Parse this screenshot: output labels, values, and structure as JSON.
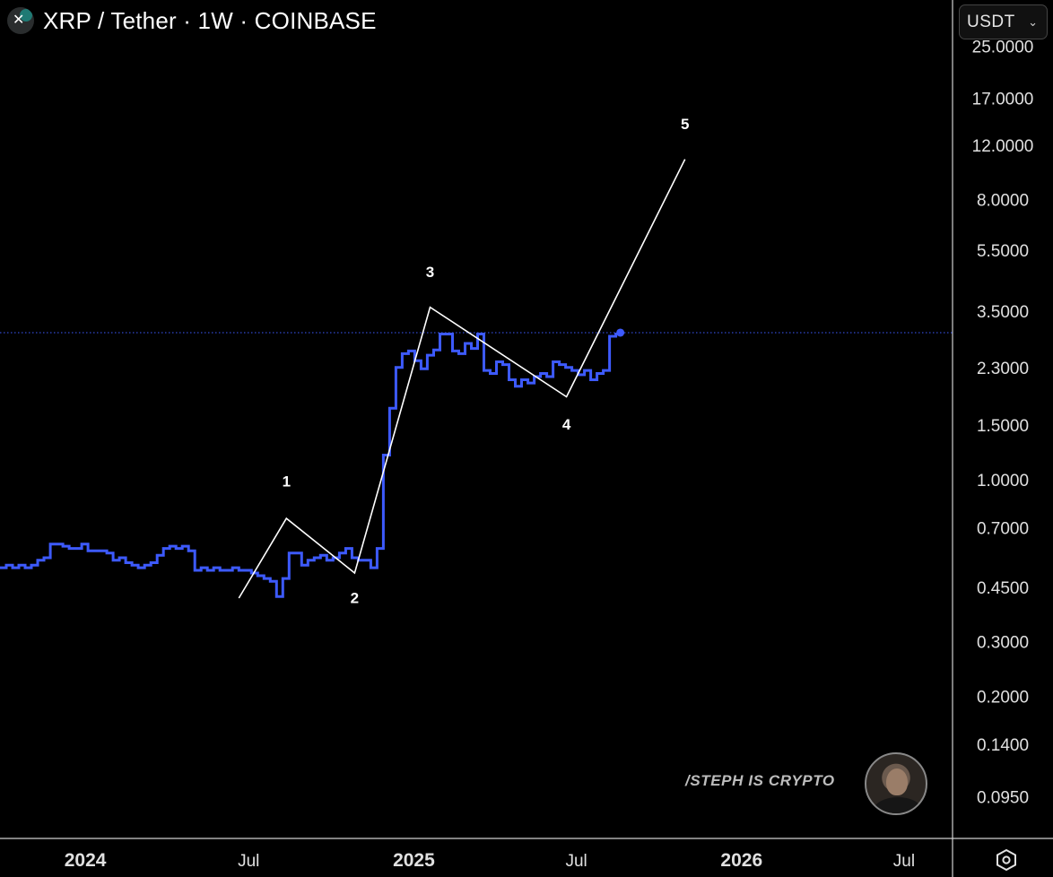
{
  "header": {
    "title": "XRP / Tether · 1W · COINBASE",
    "logo_icon": "x-logo-icon"
  },
  "currency_button": {
    "label": "USDT",
    "icon": "chevron-down-icon"
  },
  "watermark": "/STEPH IS CRYPTO",
  "settings_icon": "settings-hexagon-icon",
  "colors": {
    "background": "#000000",
    "price_line": "#3d5afe",
    "wave_line": "#ffffff",
    "current_price_dotted": "#3d5afe",
    "text": "#ffffff",
    "axis_text": "#e0e0e0"
  },
  "chart_data": {
    "type": "line",
    "title": "XRP / Tether · 1W · COINBASE",
    "x_ticks": [
      {
        "label": "2024",
        "x": "2024-01-01",
        "bold": true
      },
      {
        "label": "Jul",
        "x": "2024-07-01",
        "bold": false
      },
      {
        "label": "2025",
        "x": "2025-01-01",
        "bold": true
      },
      {
        "label": "Jul",
        "x": "2025-07-01",
        "bold": false
      },
      {
        "label": "2026",
        "x": "2026-01-01",
        "bold": true
      },
      {
        "label": "Jul",
        "x": "2026-07-01",
        "bold": false
      }
    ],
    "xlim": [
      "2023-09-28",
      "2026-08-24"
    ],
    "y_scale": "log",
    "y_ticks": [
      "25.0000",
      "17.0000",
      "12.0000",
      "8.0000",
      "5.5000",
      "3.5000",
      "2.3000",
      "1.5000",
      "1.0000",
      "0.7000",
      "0.4500",
      "0.3000",
      "0.2000",
      "0.1400",
      "0.0950"
    ],
    "ylim": [
      0.078,
      27
    ],
    "current_price": 2.98,
    "series": [
      {
        "style": "step",
        "values": [
          0.52,
          0.53,
          0.52,
          0.53,
          0.52,
          0.53,
          0.55,
          0.56,
          0.62,
          0.62,
          0.61,
          0.6,
          0.6,
          0.62,
          0.59,
          0.59,
          0.59,
          0.58,
          0.55,
          0.56,
          0.54,
          0.53,
          0.52,
          0.53,
          0.54,
          0.57,
          0.6,
          0.61,
          0.6,
          0.61,
          0.59,
          0.51,
          0.52,
          0.51,
          0.52,
          0.51,
          0.51,
          0.52,
          0.51,
          0.51,
          0.5,
          0.49,
          0.48,
          0.47,
          0.42,
          0.48,
          0.58,
          0.58,
          0.53,
          0.55,
          0.56,
          0.57,
          0.55,
          0.56,
          0.58,
          0.6,
          0.56,
          0.55,
          0.55,
          0.52,
          0.6,
          1.2,
          1.7,
          2.3,
          2.55,
          2.6,
          2.42,
          2.28,
          2.52,
          2.62,
          2.95,
          2.95,
          2.6,
          2.55,
          2.75,
          2.65,
          2.95,
          2.25,
          2.2,
          2.4,
          2.35,
          2.1,
          2.0,
          2.1,
          2.05,
          2.15,
          2.2,
          2.15,
          2.4,
          2.35,
          2.3,
          2.25,
          2.18,
          2.25,
          2.1,
          2.2,
          2.25,
          2.9,
          2.98
        ],
        "start": "2023-09-28",
        "step_days": 7
      }
    ],
    "wave_lines": [
      {
        "x": "2024-06-20",
        "y": 0.415
      },
      {
        "x": "2024-08-12",
        "y": 0.75
      },
      {
        "x": "2024-10-27",
        "y": 0.5
      },
      {
        "x": "2025-01-19",
        "y": 3.6
      },
      {
        "x": "2025-06-20",
        "y": 1.85
      },
      {
        "x": "2025-10-30",
        "y": 10.8
      }
    ],
    "wave_labels": [
      {
        "text": "1",
        "x": "2024-08-12",
        "y": 0.95
      },
      {
        "text": "2",
        "x": "2024-10-27",
        "y": 0.4
      },
      {
        "text": "3",
        "x": "2025-01-19",
        "y": 4.5
      },
      {
        "text": "4",
        "x": "2025-06-20",
        "y": 1.45
      },
      {
        "text": "5",
        "x": "2025-10-30",
        "y": 13.5
      }
    ]
  }
}
